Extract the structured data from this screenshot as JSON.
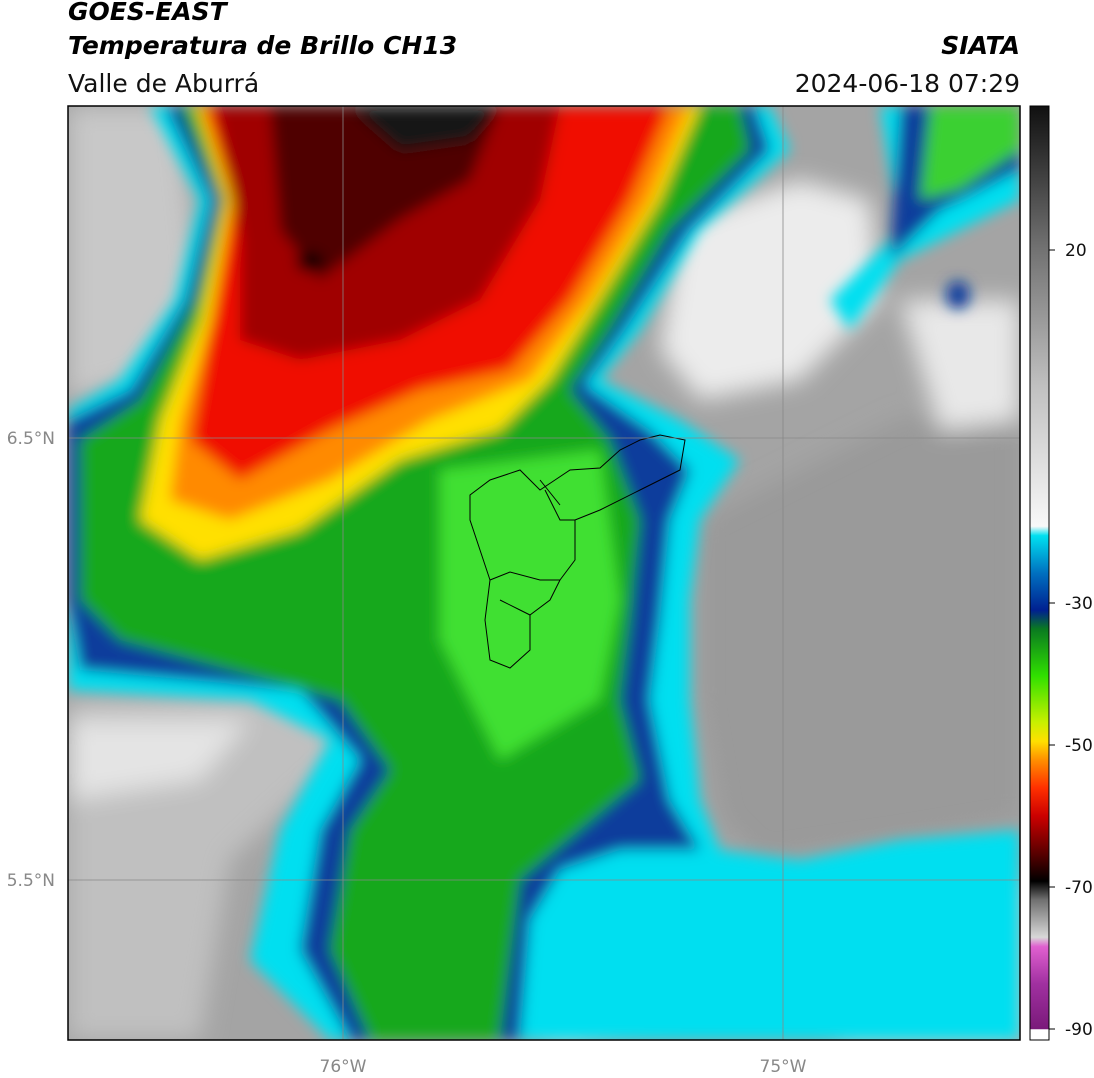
{
  "header": {
    "line1": "GOES-EAST",
    "line2": "Temperatura de Brillo CH13",
    "region": "Valle de Aburrá",
    "source": "SIATA",
    "timestamp": "2024-06-18 07:29"
  },
  "map": {
    "lat_labels": [
      "6.5°N",
      "5.5°N"
    ],
    "lon_labels": [
      "76°W",
      "75°W"
    ]
  },
  "colorbar": {
    "ticks": [
      20,
      -30,
      -50,
      -70,
      -90
    ]
  }
}
